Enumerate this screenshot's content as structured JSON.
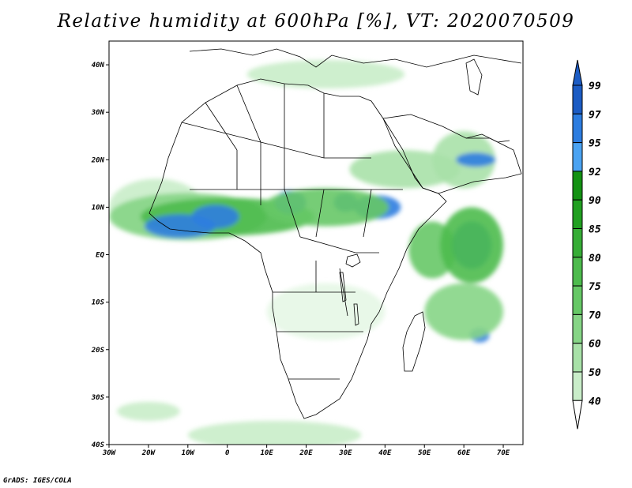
{
  "title": "Relative humidity at 600hPa [%], VT: 2020070509",
  "credit": "GrADS: IGES/COLA",
  "map": {
    "lon_range": [
      -30,
      75
    ],
    "lat_range": [
      -40,
      45
    ],
    "lon_ticks": [
      {
        "value": -30,
        "label": "30W"
      },
      {
        "value": -20,
        "label": "20W"
      },
      {
        "value": -10,
        "label": "10W"
      },
      {
        "value": 0,
        "label": "0"
      },
      {
        "value": 10,
        "label": "10E"
      },
      {
        "value": 20,
        "label": "20E"
      },
      {
        "value": 30,
        "label": "30E"
      },
      {
        "value": 40,
        "label": "40E"
      },
      {
        "value": 50,
        "label": "50E"
      },
      {
        "value": 60,
        "label": "60E"
      },
      {
        "value": 70,
        "label": "70E"
      }
    ],
    "lat_ticks": [
      {
        "value": 40,
        "label": "40N"
      },
      {
        "value": 30,
        "label": "30N"
      },
      {
        "value": 20,
        "label": "20N"
      },
      {
        "value": 10,
        "label": "10N"
      },
      {
        "value": 0,
        "label": "EQ"
      },
      {
        "value": -10,
        "label": "10S"
      },
      {
        "value": -20,
        "label": "20S"
      },
      {
        "value": -30,
        "label": "30S"
      },
      {
        "value": -40,
        "label": "40S"
      }
    ]
  },
  "colorbar": {
    "levels": [
      "40",
      "50",
      "60",
      "70",
      "75",
      "80",
      "85",
      "90",
      "92",
      "95",
      "97",
      "99"
    ],
    "colors": [
      "#e6f7e6",
      "#c9edc9",
      "#a8e1a8",
      "#86d586",
      "#66c866",
      "#4dbb4d",
      "#36ad36",
      "#21a021",
      "#139213",
      "#4ba3f2",
      "#2d7de0",
      "#1c5cc4"
    ],
    "under_color": "#ffffff",
    "over_color": "#1c5cc4"
  },
  "humidity_regions": [
    {
      "level": "50-60",
      "lon": -18,
      "lat": 10,
      "rx": 12,
      "ry": 6,
      "color": "#c9edc9"
    },
    {
      "level": "60-75",
      "lon": -10,
      "lat": 8,
      "rx": 20,
      "ry": 5,
      "color": "#86d586"
    },
    {
      "level": "75-90",
      "lon": 0,
      "lat": 8,
      "rx": 22,
      "ry": 4,
      "color": "#4dbb4d"
    },
    {
      "level": "97-99",
      "lon": -12,
      "lat": 6,
      "rx": 9,
      "ry": 2.5,
      "color": "#2d7de0"
    },
    {
      "level": "97-99",
      "lon": -3,
      "lat": 8,
      "rx": 6,
      "ry": 2.5,
      "color": "#2d7de0"
    },
    {
      "level": "97-99",
      "lon": 16,
      "lat": 11,
      "rx": 4,
      "ry": 2.5,
      "color": "#2d7de0"
    },
    {
      "level": "97-99",
      "lon": 30,
      "lat": 11,
      "rx": 3,
      "ry": 2,
      "color": "#2d7de0"
    },
    {
      "level": "97-99",
      "lon": 38,
      "lat": 10,
      "rx": 6,
      "ry": 2.5,
      "color": "#2d7de0"
    },
    {
      "level": "75-85",
      "lon": 25,
      "lat": 10,
      "rx": 16,
      "ry": 4,
      "color": "#66c866"
    },
    {
      "level": "60-75",
      "lon": 45,
      "lat": 18,
      "rx": 14,
      "ry": 4,
      "color": "#a8e1a8"
    },
    {
      "level": "70-85",
      "lon": 52,
      "lat": 1,
      "rx": 6,
      "ry": 6,
      "color": "#66c866"
    },
    {
      "level": "97-99",
      "lon": 62,
      "lat": 2,
      "rx": 5,
      "ry": 5,
      "color": "#2d7de0"
    },
    {
      "level": "75-90",
      "lon": 62,
      "lat": 2,
      "rx": 8,
      "ry": 8,
      "color": "#4dbb4d"
    },
    {
      "level": "97-99",
      "lon": 64,
      "lat": -17,
      "rx": 2.5,
      "ry": 1.5,
      "color": "#2d7de0"
    },
    {
      "level": "60-75",
      "lon": 60,
      "lat": -12,
      "rx": 10,
      "ry": 6,
      "color": "#86d586"
    },
    {
      "level": "50-70",
      "lon": 60,
      "lat": 20,
      "rx": 8,
      "ry": 6,
      "color": "#a8e1a8"
    },
    {
      "level": "97-99",
      "lon": 63,
      "lat": 20,
      "rx": 5,
      "ry": 1.5,
      "color": "#2d7de0"
    },
    {
      "level": "40-60",
      "lon": 12,
      "lat": -38,
      "rx": 22,
      "ry": 3,
      "color": "#c9edc9"
    },
    {
      "level": "40-60",
      "lon": -20,
      "lat": -33,
      "rx": 8,
      "ry": 2,
      "color": "#c9edc9"
    },
    {
      "level": "40-60",
      "lon": 25,
      "lat": 38,
      "rx": 20,
      "ry": 3,
      "color": "#c9edc9"
    },
    {
      "level": "40-60",
      "lon": 25,
      "lat": -12,
      "rx": 15,
      "ry": 6,
      "color": "#e6f7e6"
    }
  ]
}
